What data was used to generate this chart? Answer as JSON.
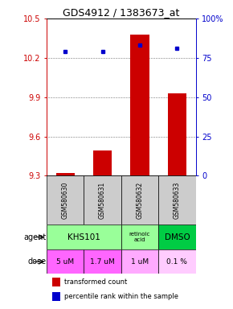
{
  "title": "GDS4912 / 1383673_at",
  "samples": [
    "GSM580630",
    "GSM580631",
    "GSM580632",
    "GSM580633"
  ],
  "bar_values": [
    9.32,
    9.49,
    10.38,
    9.93
  ],
  "bar_base": 9.3,
  "percentile_values": [
    79,
    79,
    83,
    81
  ],
  "ylim": [
    9.3,
    10.5
  ],
  "yticks_left": [
    9.3,
    9.6,
    9.9,
    10.2,
    10.5
  ],
  "yticks_right": [
    0,
    25,
    50,
    75,
    100
  ],
  "ytick_labels_right": [
    "0",
    "25",
    "50",
    "75",
    "100%"
  ],
  "bar_color": "#cc0000",
  "dot_color": "#0000cc",
  "agent_khs_color": "#99ff99",
  "agent_ret_color": "#99ff99",
  "agent_dmso_color": "#00cc44",
  "dose_colors": [
    "#ff66ff",
    "#ff66ff",
    "#ffaaff",
    "#ffccff"
  ],
  "dose_labels": [
    "5 uM",
    "1.7 uM",
    "1 uM",
    "0.1 %"
  ],
  "sample_box_color": "#cccccc",
  "legend_bar_color": "#cc0000",
  "legend_dot_color": "#0000cc",
  "legend_text1": "transformed count",
  "legend_text2": "percentile rank within the sample"
}
